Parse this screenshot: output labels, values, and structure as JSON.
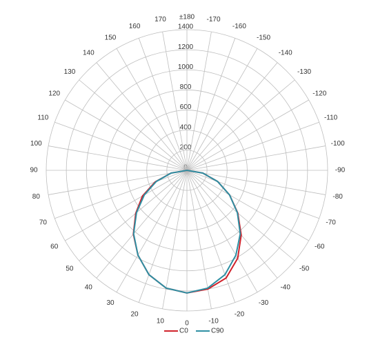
{
  "chart_data": {
    "type": "polar",
    "x": [
      -90,
      -80,
      -70,
      -60,
      -50,
      -40,
      -30,
      -20,
      -10,
      0,
      10,
      20,
      30,
      40,
      50,
      60,
      70,
      80,
      90
    ],
    "series": [
      {
        "name": "C0",
        "color": "#d0212a",
        "values": [
          0,
          160,
          325,
          490,
          660,
          840,
          1010,
          1140,
          1200,
          1220,
          1190,
          1105,
          975,
          830,
          665,
          510,
          335,
          160,
          0
        ]
      },
      {
        "name": "C90",
        "color": "#2e8fa3",
        "values": [
          0,
          160,
          325,
          490,
          655,
          825,
          975,
          1105,
          1190,
          1220,
          1190,
          1105,
          975,
          825,
          655,
          490,
          325,
          160,
          0
        ]
      }
    ],
    "rlim": [
      0,
      1400
    ],
    "rticks": [
      0,
      200,
      400,
      600,
      800,
      1000,
      1200,
      1400
    ],
    "thetaticks": [
      0,
      10,
      20,
      30,
      40,
      50,
      60,
      70,
      80,
      90,
      100,
      110,
      120,
      130,
      140,
      150,
      160,
      170,
      {
        "value": 180,
        "label": "±180"
      },
      -170,
      -160,
      -150,
      -140,
      -130,
      -120,
      -110,
      -100,
      -90,
      -80,
      -70,
      -60,
      -50,
      -40,
      -30,
      -20,
      -10
    ],
    "grid": true
  }
}
